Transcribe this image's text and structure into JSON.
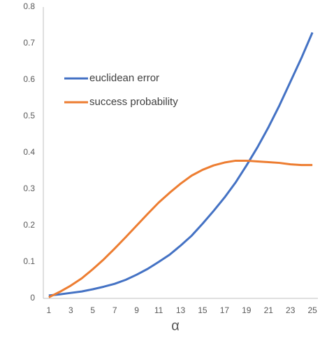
{
  "chart_data": {
    "type": "line",
    "xlabel": "α",
    "categories": [
      1,
      null,
      3,
      null,
      5,
      null,
      7,
      null,
      9,
      null,
      11,
      null,
      13,
      null,
      15,
      null,
      17,
      null,
      19,
      null,
      21,
      null,
      23,
      null,
      25
    ],
    "series": [
      {
        "name": "euclidean error",
        "color": "#4472c4",
        "values": [
          0.008,
          0.011,
          0.015,
          0.019,
          0.025,
          0.032,
          0.04,
          0.051,
          0.065,
          0.081,
          0.1,
          0.12,
          0.145,
          0.172,
          0.205,
          0.24,
          0.277,
          0.318,
          0.365,
          0.415,
          0.47,
          0.53,
          0.595,
          0.66,
          0.73
        ]
      },
      {
        "name": "success probability",
        "color": "#ed7d31",
        "values": [
          0.003,
          0.018,
          0.035,
          0.055,
          0.08,
          0.107,
          0.137,
          0.168,
          0.2,
          0.232,
          0.263,
          0.29,
          0.315,
          0.337,
          0.353,
          0.365,
          0.373,
          0.378,
          0.378,
          0.376,
          0.374,
          0.372,
          0.368,
          0.366,
          0.366
        ]
      }
    ],
    "ylim": [
      0,
      0.8
    ],
    "yticks": [
      0,
      0.1,
      0.2,
      0.3,
      0.4,
      0.5,
      0.6,
      0.7,
      0.8
    ],
    "grid": false,
    "legend": "upper left"
  }
}
